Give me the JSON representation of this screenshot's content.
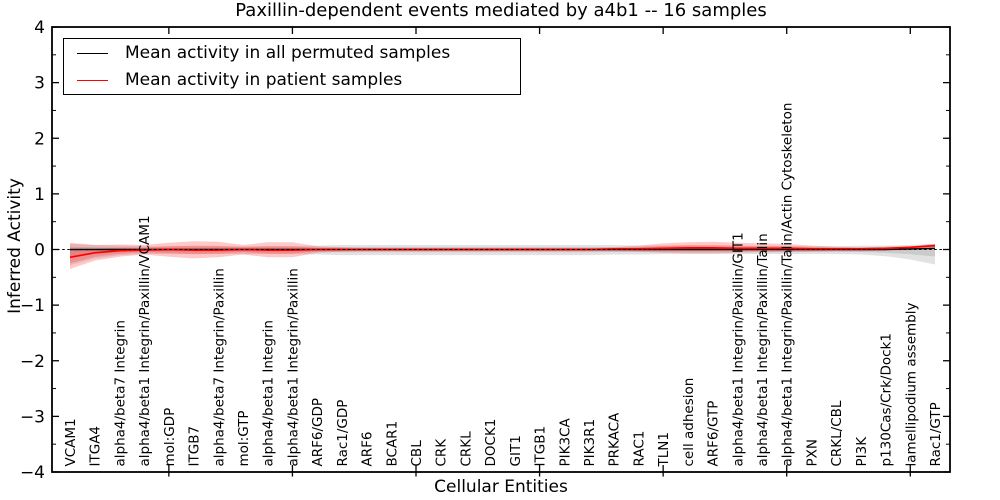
{
  "title": "Paxillin-dependent events mediated by a4b1 -- 16 samples",
  "legend": {
    "items": [
      {
        "label": "Mean activity in all permuted samples",
        "color": "#000000"
      },
      {
        "label": "Mean activity in patient samples",
        "color": "#ff0000"
      }
    ]
  },
  "chart_data": {
    "type": "line",
    "title": "Paxillin-dependent events mediated by a4b1 -- 16 samples",
    "xlabel": "Cellular Entities",
    "ylabel": "Inferred Activity",
    "ylim": [
      -4,
      4
    ],
    "y_ticks": [
      4,
      3,
      2,
      1,
      0,
      -1,
      -2,
      -3,
      -4
    ],
    "x_major_tick_indices": [
      4,
      9,
      14,
      19,
      24,
      29,
      34
    ],
    "grid": false,
    "legend_position": "upper left",
    "zero_line_dashed": true,
    "categories": [
      "VCAM1",
      "ITGA4",
      "alpha4/beta7 Integrin",
      "alpha4/beta1 Integrin/Paxillin/VCAM1",
      "mol:GDP",
      "ITGB7",
      "alpha4/beta7 Integrin/Paxillin",
      "mol:GTP",
      "alpha4/beta1 Integrin",
      "alpha4/beta1 Integrin/Paxillin",
      "ARF6/GDP",
      "Rac1/GDP",
      "ARF6",
      "BCAR1",
      "CBL",
      "CRK",
      "CRKL",
      "DOCK1",
      "GIT1",
      "ITGB1",
      "PIK3CA",
      "PIK3R1",
      "PRKACA",
      "RAC1",
      "TLN1",
      "cell adhesion",
      "ARF6/GTP",
      "alpha4/beta1 Integrin/Paxillin/GIT1",
      "alpha4/beta1 Integrin/Paxillin/Talin",
      "alpha4/beta1 Integrin/Paxillin/Talin/Actin Cytoskeleton",
      "PXN",
      "CRKL/CBL",
      "PI3K",
      "p130Cas/Crk/Dock1",
      "lamellipodium assembly",
      "Rac1/GTP"
    ],
    "series": [
      {
        "name": "Mean activity in all permuted samples",
        "color": "#000000",
        "band_color": "rgba(125,125,125,0.22)",
        "values": [
          0,
          0,
          0,
          0,
          0,
          0,
          0,
          0,
          0,
          0,
          0,
          0,
          0,
          0,
          0,
          0,
          0,
          0,
          0,
          0,
          0,
          0,
          0,
          0,
          0,
          0,
          0,
          0,
          0,
          0,
          0,
          0,
          0,
          0,
          0.01,
          0.02
        ],
        "band_hi": [
          0.1,
          0.08,
          0.07,
          0.06,
          0.06,
          0.06,
          0.06,
          0.06,
          0.06,
          0.06,
          0.07,
          0.08,
          0.08,
          0.08,
          0.08,
          0.08,
          0.08,
          0.08,
          0.08,
          0.08,
          0.08,
          0.08,
          0.08,
          0.07,
          0.07,
          0.07,
          0.06,
          0.06,
          0.06,
          0.06,
          0.06,
          0.06,
          0.07,
          0.07,
          0.08,
          0.1
        ],
        "band_lo": [
          -0.28,
          -0.16,
          -0.1,
          -0.08,
          -0.08,
          -0.08,
          -0.08,
          -0.08,
          -0.08,
          -0.08,
          -0.09,
          -0.1,
          -0.1,
          -0.1,
          -0.1,
          -0.1,
          -0.1,
          -0.1,
          -0.1,
          -0.1,
          -0.1,
          -0.1,
          -0.09,
          -0.09,
          -0.08,
          -0.08,
          -0.08,
          -0.08,
          -0.08,
          -0.08,
          -0.08,
          -0.08,
          -0.09,
          -0.12,
          -0.18,
          -0.27
        ]
      },
      {
        "name": "Mean activity in patient samples",
        "color": "#ff0000",
        "band_color": "rgba(255,45,45,0.26)",
        "values": [
          -0.14,
          -0.06,
          -0.02,
          -0.01,
          0,
          -0.01,
          -0.01,
          0,
          -0.01,
          -0.01,
          0,
          0,
          0,
          0,
          0,
          0,
          0,
          0,
          0,
          0,
          0,
          0,
          0.01,
          0.01,
          0.02,
          0.03,
          0.03,
          0.02,
          0.02,
          0.02,
          0.01,
          0.01,
          0.01,
          0.02,
          0.04,
          0.07
        ],
        "band_hi": [
          0.12,
          0.08,
          0.09,
          0.08,
          0.12,
          0.15,
          0.14,
          0.08,
          0.13,
          0.13,
          0.06,
          0.04,
          0.03,
          0.03,
          0.03,
          0.03,
          0.03,
          0.03,
          0.03,
          0.03,
          0.03,
          0.03,
          0.04,
          0.07,
          0.11,
          0.13,
          0.14,
          0.12,
          0.11,
          0.1,
          0.07,
          0.05,
          0.04,
          0.05,
          0.06,
          0.1
        ],
        "band_lo": [
          -0.35,
          -0.2,
          -0.13,
          -0.09,
          -0.13,
          -0.16,
          -0.14,
          -0.09,
          -0.14,
          -0.14,
          -0.06,
          -0.04,
          -0.03,
          -0.03,
          -0.03,
          -0.03,
          -0.03,
          -0.03,
          -0.03,
          -0.03,
          -0.03,
          -0.03,
          -0.03,
          -0.04,
          -0.06,
          -0.07,
          -0.07,
          -0.06,
          -0.05,
          -0.05,
          -0.04,
          -0.03,
          -0.03,
          -0.02,
          -0.01,
          0.03
        ]
      }
    ]
  }
}
